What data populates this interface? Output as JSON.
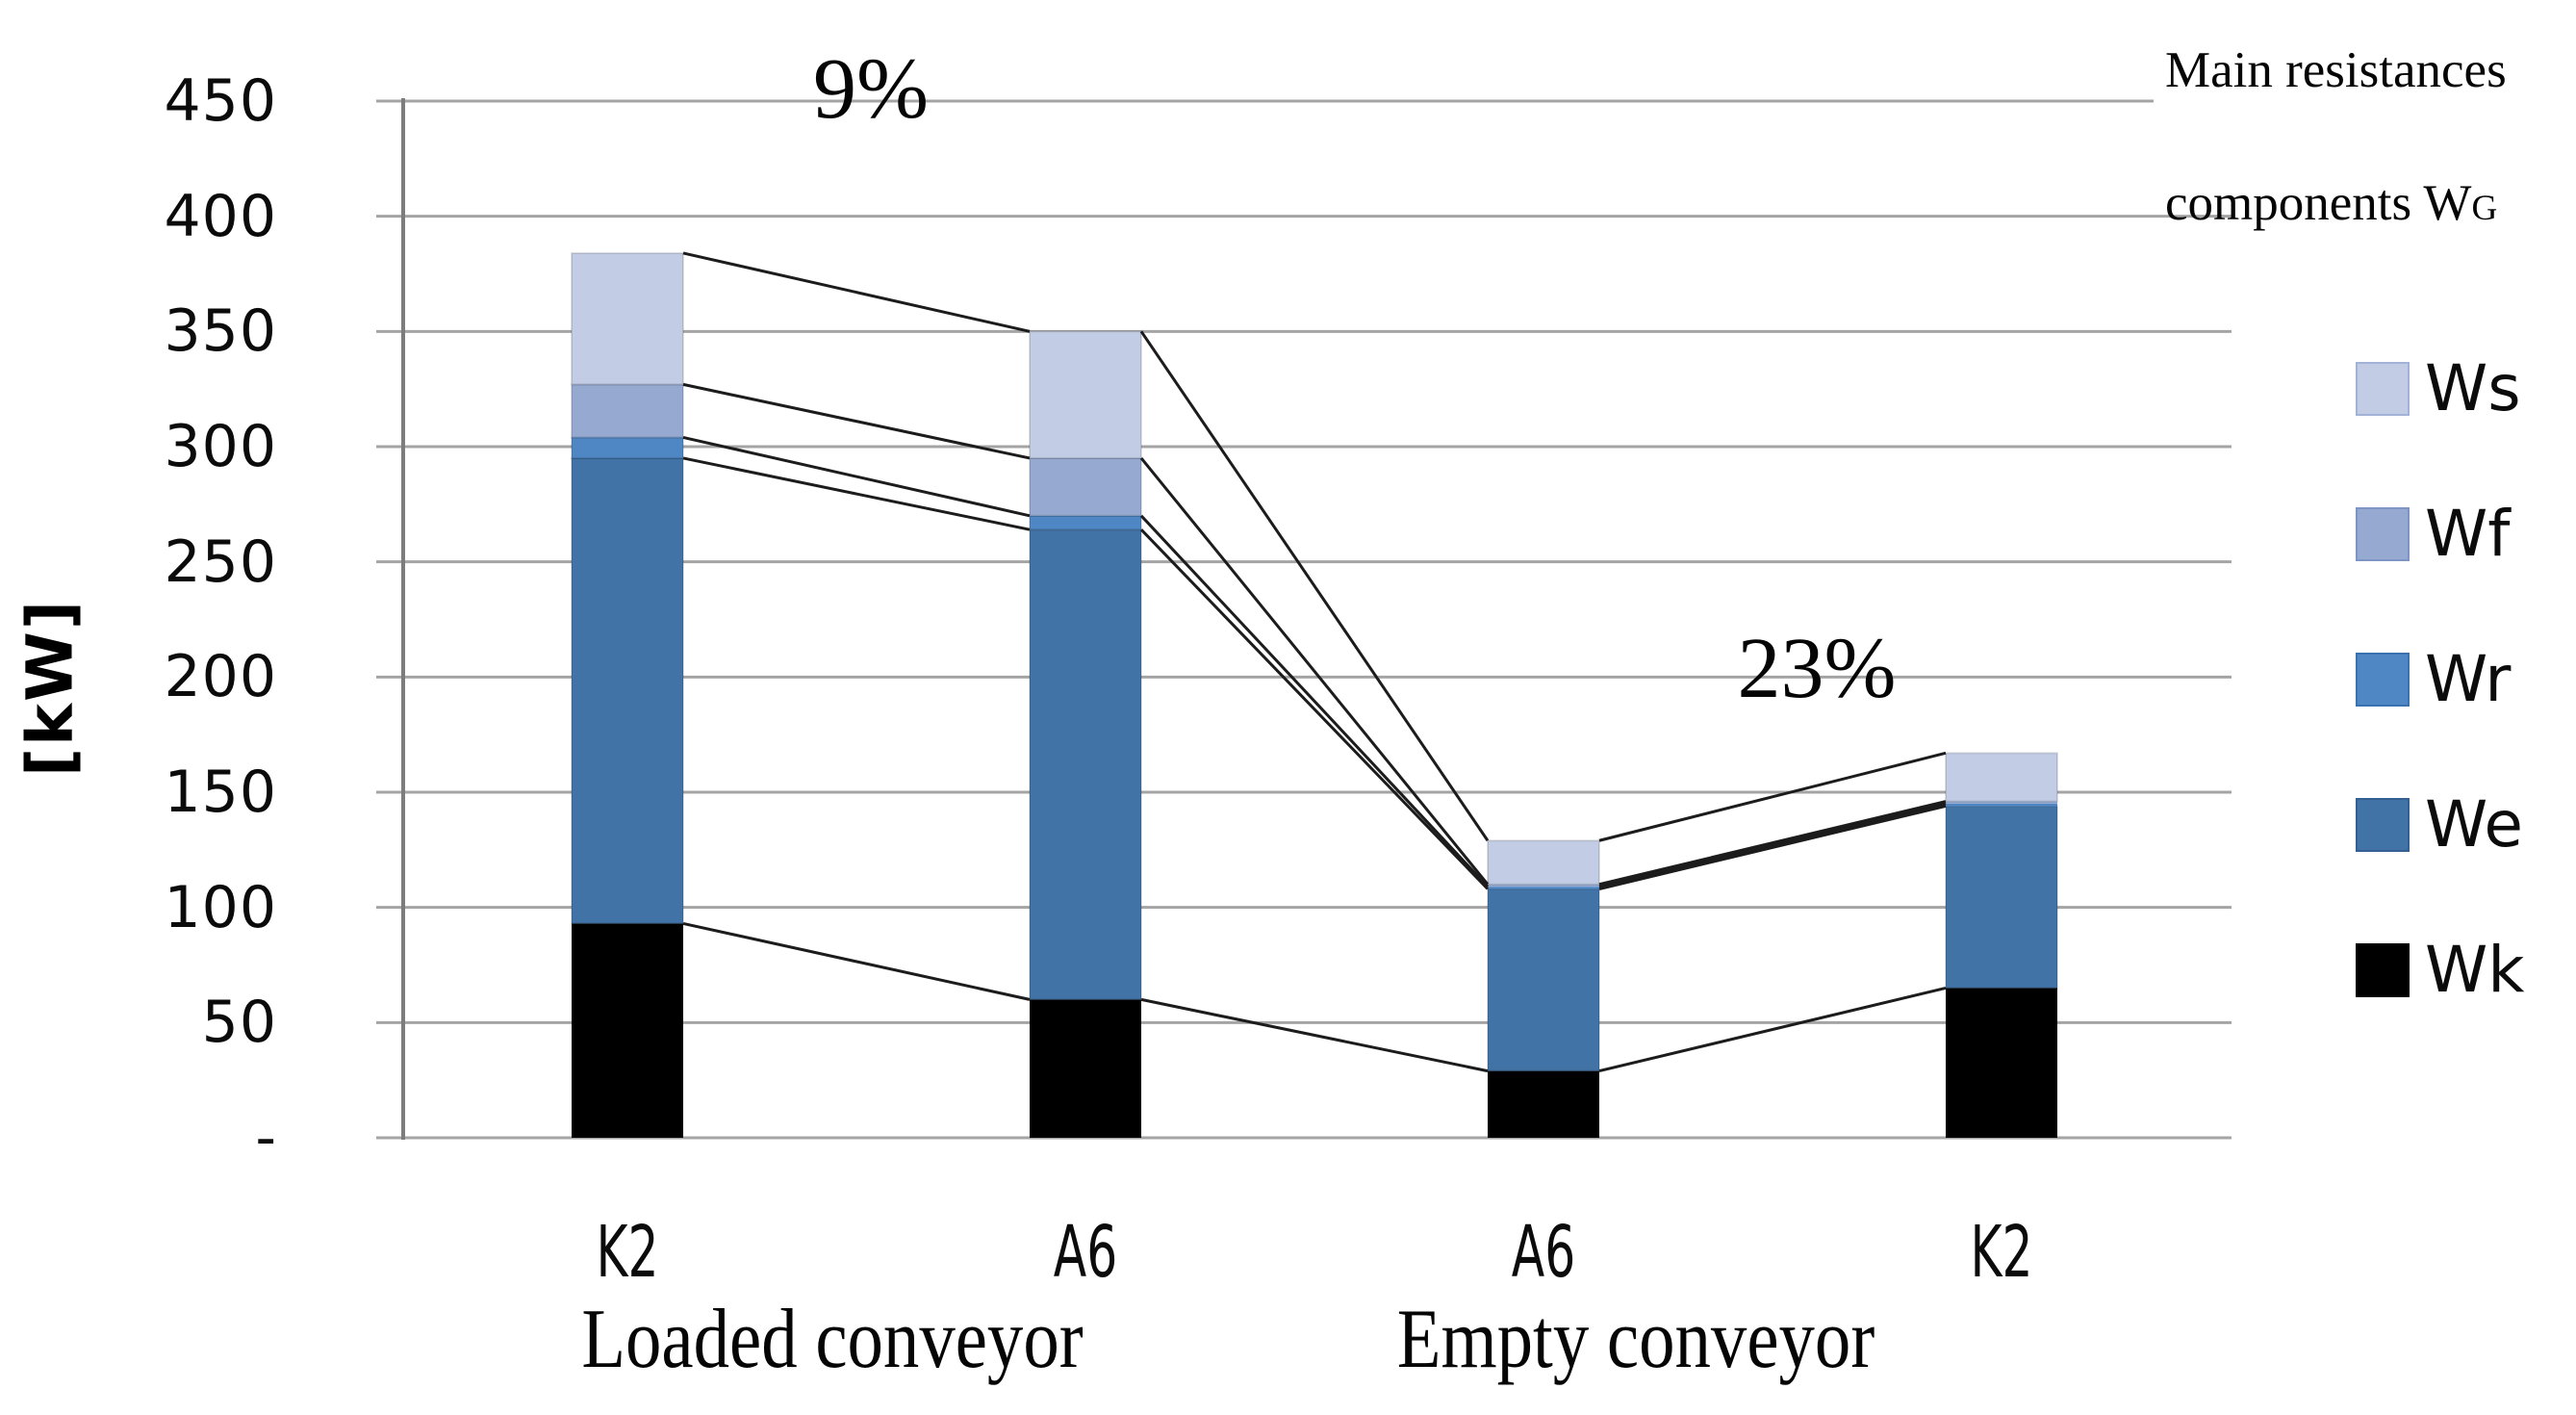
{
  "title": {
    "line1": "Main resistances",
    "line2_prefix": "components W",
    "line2_sub": "G"
  },
  "y_axis": {
    "unit_label": "[kW]",
    "ticks": [
      {
        "label": "450",
        "value": 450
      },
      {
        "label": "400",
        "value": 400
      },
      {
        "label": "350",
        "value": 350
      },
      {
        "label": "300",
        "value": 300
      },
      {
        "label": "250",
        "value": 250
      },
      {
        "label": "200",
        "value": 200
      },
      {
        "label": "150",
        "value": 150
      },
      {
        "label": "100",
        "value": 100
      },
      {
        "label": "50",
        "value": 50
      },
      {
        "label": "-",
        "value": 0
      }
    ]
  },
  "x_axis": {
    "categories": [
      "K2",
      "A6",
      "A6",
      "K2"
    ],
    "group_labels": [
      "Loaded conveyor",
      "Empty conveyor"
    ]
  },
  "annotations": [
    {
      "text": "9%",
      "between_categories": [
        0,
        1
      ],
      "at_kw": 450
    },
    {
      "text": "23%",
      "between_categories": [
        2,
        3
      ],
      "at_kw": 200
    }
  ],
  "legend": {
    "items": [
      {
        "label": "Ws",
        "color": "#c2cce4",
        "border": "#a2b2d6"
      },
      {
        "label": "Wf",
        "color": "#95a9d1",
        "border": "#7d95c4"
      },
      {
        "label": "Wr",
        "color": "#4e87c4",
        "border": "#3a72b0"
      },
      {
        "label": "We",
        "color": "#4173a7",
        "border": "#335f92"
      },
      {
        "label": "Wk",
        "color": "#000000",
        "border": "#000000"
      }
    ]
  },
  "chart_data": {
    "type": "bar",
    "stacked": true,
    "title": "Main resistances components WG",
    "categories": [
      "K2",
      "A6",
      "A6",
      "K2"
    ],
    "group_labels": [
      "Loaded conveyor",
      "Empty conveyor"
    ],
    "series": [
      {
        "name": "Wk",
        "color": "#000000",
        "values": [
          93,
          60,
          29,
          65
        ]
      },
      {
        "name": "We",
        "color": "#4173a7",
        "values": [
          202,
          204,
          79,
          79
        ]
      },
      {
        "name": "Wr",
        "color": "#4e87c4",
        "values": [
          9,
          6,
          1,
          1
        ]
      },
      {
        "name": "Wf",
        "color": "#95a9d1",
        "values": [
          23,
          25,
          1,
          1
        ]
      },
      {
        "name": "Ws",
        "color": "#c2cce4",
        "values": [
          57,
          55,
          19,
          21
        ]
      }
    ],
    "stack_totals_kw": [
      384,
      350,
      129,
      167
    ],
    "ylabel": "[kW]",
    "ylim": [
      0,
      450
    ],
    "ytick_step": 50,
    "grid": true,
    "gridline_color": "#a4a4a4",
    "axis_color": "#7d7d7d",
    "series_line_color": "#1c1c1c",
    "legend_position": "right",
    "legend_order_top_to_bottom": [
      "Ws",
      "Wf",
      "Wr",
      "We",
      "Wk"
    ],
    "series_lines": true,
    "annotations": [
      "9%",
      "23%"
    ]
  }
}
